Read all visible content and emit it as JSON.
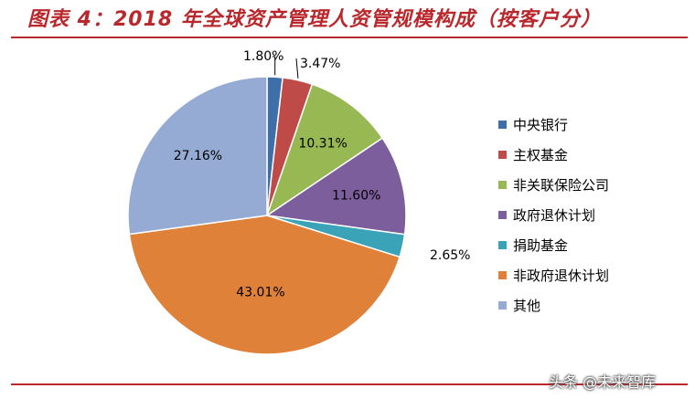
{
  "header": {
    "title": "图表 4：2018 年全球资产管理人资管规模构成（按客户分）"
  },
  "watermark": "头条 @未来智库",
  "chart_data": {
    "type": "pie",
    "title": "图表 4：2018 年全球资产管理人资管规模构成（按客户分）",
    "legend_position": "right",
    "slices": [
      {
        "name": "中央银行",
        "value": 1.8,
        "label": "1.80%",
        "color": "#3e6fa8"
      },
      {
        "name": "主权基金",
        "value": 3.47,
        "label": "3.47%",
        "color": "#be4b48"
      },
      {
        "name": "非关联保险公司",
        "value": 10.31,
        "label": "10.31%",
        "color": "#97b853"
      },
      {
        "name": "政府退休计划",
        "value": 11.6,
        "label": "11.60%",
        "color": "#7c5e9c"
      },
      {
        "name": "捐助基金",
        "value": 2.65,
        "label": "2.65%",
        "color": "#3aa3b8"
      },
      {
        "name": "非政府退休计划",
        "value": 43.01,
        "label": "43.01%",
        "color": "#e0813a"
      },
      {
        "name": "其他",
        "value": 27.16,
        "label": "27.16%",
        "color": "#95abd3"
      }
    ]
  }
}
